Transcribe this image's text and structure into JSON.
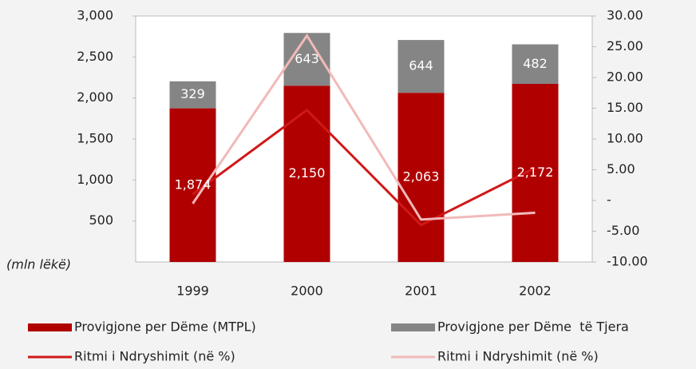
{
  "chart_data": {
    "type": "bar",
    "y_label": "(mln lëkë)",
    "categories": [
      "1999",
      "2000",
      "2001",
      "2002"
    ],
    "stacked": true,
    "series": [
      {
        "name": "Provigjone per Dëme (MTPL)",
        "color": "#b00000",
        "values": [
          1874,
          2150,
          2063,
          2172
        ],
        "value_labels": [
          "1,874",
          "2,150",
          "2,063",
          "2,172"
        ]
      },
      {
        "name": "Provigjone per Dëme  të Tjera",
        "color": "#858585",
        "values": [
          329,
          643,
          644,
          482
        ]
      },
      {
        "name": "Ritmi i Ndryshimit (në %)",
        "type": "line",
        "axis": "y2",
        "color": "#d01818",
        "values": [
          1,
          14.7,
          -4,
          5.3
        ]
      },
      {
        "name": "Ritmi i Ndryshimit (në %)",
        "type": "line",
        "axis": "y2",
        "color": "#f2b9b9",
        "values": [
          -0.5,
          26.8,
          -3.1,
          -2
        ]
      }
    ],
    "ylim": [
      0,
      3000
    ],
    "yticks": [
      {
        "value": 500,
        "label": "500"
      },
      {
        "value": 1000,
        "label": "1,000"
      },
      {
        "value": 1500,
        "label": "1,500"
      },
      {
        "value": 2000,
        "label": "2,000"
      },
      {
        "value": 2500,
        "label": "2,500"
      },
      {
        "value": 3000,
        "label": "3,000"
      }
    ],
    "y2lim": [
      -10,
      30
    ],
    "y2ticks": [
      {
        "value": -10,
        "label": "-10.00"
      },
      {
        "value": -5,
        "label": "-5.00"
      },
      {
        "value": 0,
        "label": "-"
      },
      {
        "value": 5,
        "label": "5.00"
      },
      {
        "value": 10,
        "label": "10.00"
      },
      {
        "value": 15,
        "label": "15.00"
      },
      {
        "value": 20,
        "label": "20.00"
      },
      {
        "value": 25,
        "label": "25.00"
      },
      {
        "value": 30,
        "label": "30.00"
      }
    ]
  }
}
